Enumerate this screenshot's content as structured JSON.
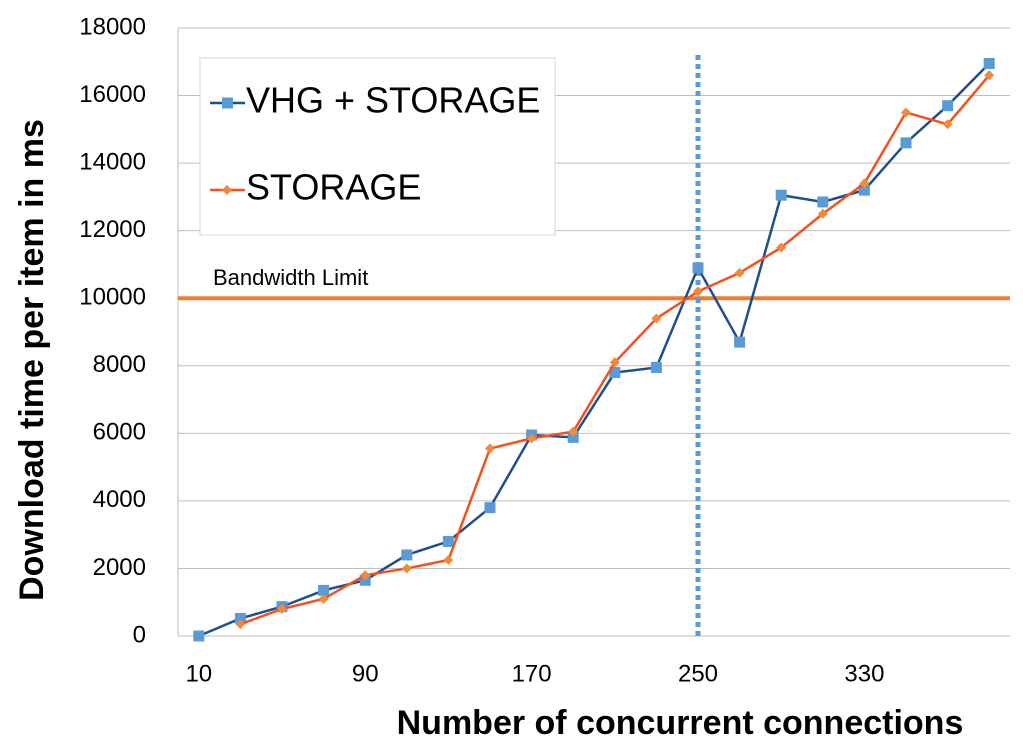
{
  "chart_data": {
    "type": "line",
    "xlabel": "Number of concurrent connections",
    "ylabel": "Download time per item  in ms",
    "x": [
      10,
      30,
      50,
      70,
      90,
      110,
      130,
      150,
      170,
      190,
      210,
      230,
      250,
      270,
      290,
      310,
      330,
      350,
      370,
      390
    ],
    "series": [
      {
        "name": "VHG + STORAGE",
        "color": "#1f4e8c",
        "marker_color": "#5b9bd5",
        "marker": "square",
        "values": [
          0,
          520,
          870,
          1350,
          1650,
          2400,
          2800,
          3800,
          5950,
          5880,
          7800,
          7950,
          10900,
          8700,
          13050,
          12850,
          13200,
          14600,
          15700,
          16950
        ]
      },
      {
        "name": "STORAGE",
        "color": "#f4511e",
        "marker_color": "#f08a3c",
        "marker": "diamond",
        "values": [
          null,
          350,
          800,
          1100,
          1800,
          2000,
          2250,
          5550,
          5850,
          6050,
          8100,
          9400,
          10200,
          10750,
          11500,
          12500,
          13400,
          15500,
          15150,
          16600
        ]
      }
    ],
    "xlim": [
      0,
      400
    ],
    "xticks": [
      10,
      90,
      170,
      250,
      330
    ],
    "ylim": [
      0,
      18000
    ],
    "yticks": [
      0,
      2000,
      4000,
      6000,
      8000,
      10000,
      12000,
      14000,
      16000,
      18000
    ],
    "grid": true,
    "legend": "upper left",
    "hline": {
      "value": 10000,
      "label": "Bandwidth Limit",
      "color": "#ed7d31"
    },
    "vline": {
      "value": 250,
      "color": "#5b9bd5"
    }
  }
}
